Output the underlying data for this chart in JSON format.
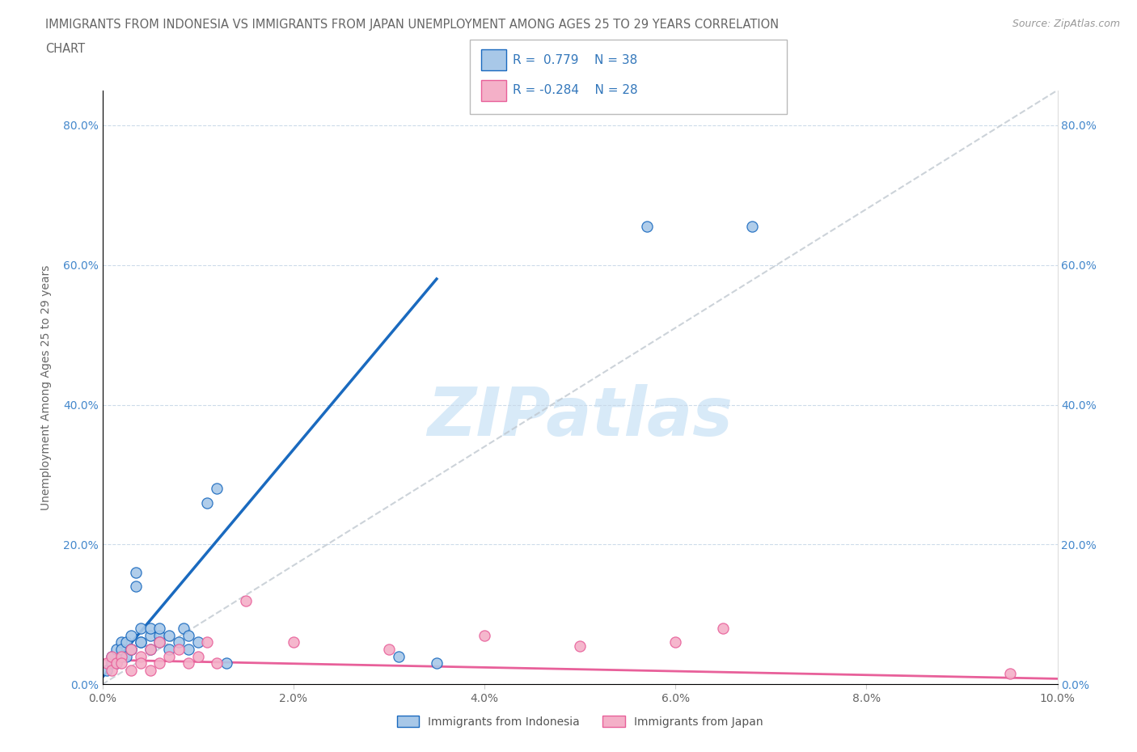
{
  "title_line1": "IMMIGRANTS FROM INDONESIA VS IMMIGRANTS FROM JAPAN UNEMPLOYMENT AMONG AGES 25 TO 29 YEARS CORRELATION",
  "title_line2": "CHART",
  "source_text": "Source: ZipAtlas.com",
  "ylabel": "Unemployment Among Ages 25 to 29 years",
  "legend_label1": "Immigrants from Indonesia",
  "legend_label2": "Immigrants from Japan",
  "R1": 0.779,
  "N1": 38,
  "R2": -0.284,
  "N2": 28,
  "xlim": [
    0.0,
    0.1
  ],
  "ylim": [
    0.0,
    0.85
  ],
  "xticks": [
    0.0,
    0.02,
    0.04,
    0.06,
    0.08,
    0.1
  ],
  "yticks": [
    0.0,
    0.2,
    0.4,
    0.6,
    0.8
  ],
  "xtick_labels": [
    "0.0%",
    "2.0%",
    "4.0%",
    "6.0%",
    "8.0%",
    "10.0%"
  ],
  "ytick_labels": [
    "0.0%",
    "20.0%",
    "40.0%",
    "60.0%",
    "80.0%"
  ],
  "color_indonesia": "#a8c8e8",
  "color_japan": "#f4b0c8",
  "color_line_indonesia": "#1a6abf",
  "color_line_japan": "#e8609a",
  "color_diag_line": "#c0c8d0",
  "watermark_color": "#d8eaf8",
  "background_color": "#ffffff",
  "indo_line_x0": 0.0,
  "indo_line_y0": 0.01,
  "indo_line_x1": 0.035,
  "indo_line_y1": 0.58,
  "jp_line_x0": 0.0,
  "jp_line_y0": 0.035,
  "jp_line_x1": 0.1,
  "jp_line_y1": 0.008,
  "indonesia_x": [
    0.0005,
    0.001,
    0.001,
    0.0015,
    0.0015,
    0.002,
    0.002,
    0.002,
    0.0025,
    0.0025,
    0.003,
    0.003,
    0.003,
    0.0035,
    0.0035,
    0.004,
    0.004,
    0.004,
    0.005,
    0.005,
    0.005,
    0.006,
    0.006,
    0.006,
    0.007,
    0.007,
    0.008,
    0.0085,
    0.009,
    0.009,
    0.01,
    0.011,
    0.012,
    0.013,
    0.031,
    0.035,
    0.057,
    0.068
  ],
  "indonesia_y": [
    0.02,
    0.03,
    0.04,
    0.05,
    0.03,
    0.04,
    0.06,
    0.05,
    0.04,
    0.06,
    0.05,
    0.07,
    0.05,
    0.14,
    0.16,
    0.06,
    0.08,
    0.06,
    0.07,
    0.08,
    0.05,
    0.07,
    0.08,
    0.06,
    0.05,
    0.07,
    0.06,
    0.08,
    0.07,
    0.05,
    0.06,
    0.26,
    0.28,
    0.03,
    0.04,
    0.03,
    0.655,
    0.655
  ],
  "japan_x": [
    0.0005,
    0.001,
    0.001,
    0.0015,
    0.002,
    0.002,
    0.003,
    0.003,
    0.004,
    0.004,
    0.005,
    0.005,
    0.006,
    0.006,
    0.007,
    0.008,
    0.009,
    0.01,
    0.011,
    0.012,
    0.015,
    0.02,
    0.03,
    0.04,
    0.05,
    0.06,
    0.065,
    0.095
  ],
  "japan_y": [
    0.03,
    0.04,
    0.02,
    0.03,
    0.04,
    0.03,
    0.05,
    0.02,
    0.04,
    0.03,
    0.05,
    0.02,
    0.06,
    0.03,
    0.04,
    0.05,
    0.03,
    0.04,
    0.06,
    0.03,
    0.12,
    0.06,
    0.05,
    0.07,
    0.055,
    0.06,
    0.08,
    0.015
  ]
}
